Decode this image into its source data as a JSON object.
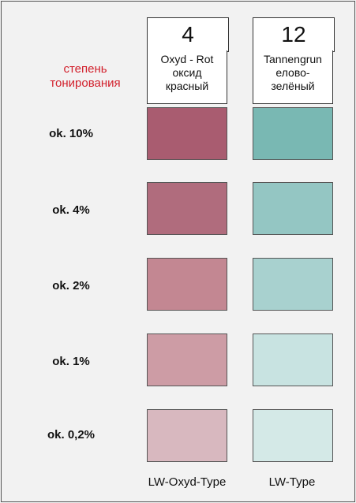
{
  "tint_title": [
    "степень",
    "тонирования"
  ],
  "columns": [
    {
      "number": "4",
      "name_lines": [
        "Oxyd - Rot",
        "оксид",
        "красный"
      ],
      "footer": "LW-Oxyd-Type"
    },
    {
      "number": "12",
      "name_lines": [
        "Tannengrun",
        "елово-",
        "зелёный"
      ],
      "footer": "LW-Type"
    }
  ],
  "rows": [
    {
      "label": "ok. 10%",
      "colors": [
        "#a95c70",
        "#79b8b3"
      ]
    },
    {
      "label": "ok. 4%",
      "colors": [
        "#b06c7d",
        "#94c6c3"
      ]
    },
    {
      "label": "ok. 2%",
      "colors": [
        "#c38792",
        "#a8d1cf"
      ]
    },
    {
      "label": "ok. 1%",
      "colors": [
        "#cd9ca5",
        "#c8e3e1"
      ]
    },
    {
      "label": "ok. 0,2%",
      "colors": [
        "#d8b8bf",
        "#d4e9e7"
      ]
    }
  ]
}
